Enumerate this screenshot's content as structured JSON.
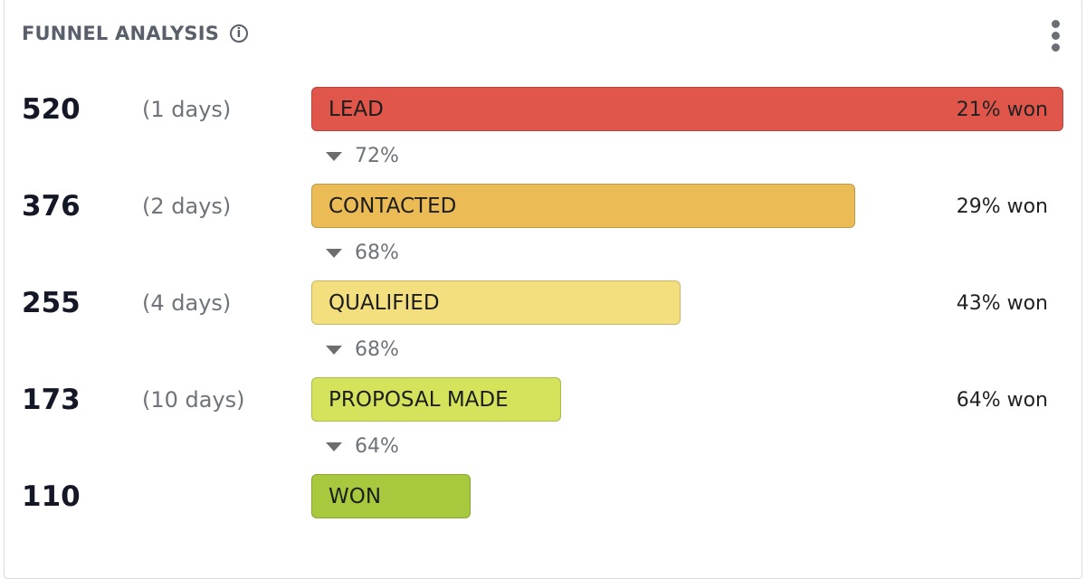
{
  "header": {
    "title": "FUNNEL ANALYSIS",
    "info_icon": "info-circle-icon",
    "menu_icon": "kebab-menu-icon"
  },
  "chart_data": {
    "type": "funnel",
    "stages": [
      {
        "label": "LEAD",
        "count": "520",
        "value": 520,
        "days": "(1 days)",
        "won": "21% won",
        "color": "#e0564b",
        "conversion_to_next": "72%"
      },
      {
        "label": "CONTACTED",
        "count": "376",
        "value": 376,
        "days": "(2 days)",
        "won": "29% won",
        "color": "#ebbb55",
        "conversion_to_next": "68%"
      },
      {
        "label": "QUALIFIED",
        "count": "255",
        "value": 255,
        "days": "(4 days)",
        "won": "43% won",
        "color": "#f3df7e",
        "conversion_to_next": "68%"
      },
      {
        "label": "PROPOSAL MADE",
        "count": "173",
        "value": 173,
        "days": "(10 days)",
        "won": "64% won",
        "color": "#d4e25c",
        "conversion_to_next": "64%"
      },
      {
        "label": "WON",
        "count": "110",
        "value": 110,
        "days": "",
        "won": "",
        "color": "#a8c93e",
        "conversion_to_next": ""
      }
    ]
  }
}
